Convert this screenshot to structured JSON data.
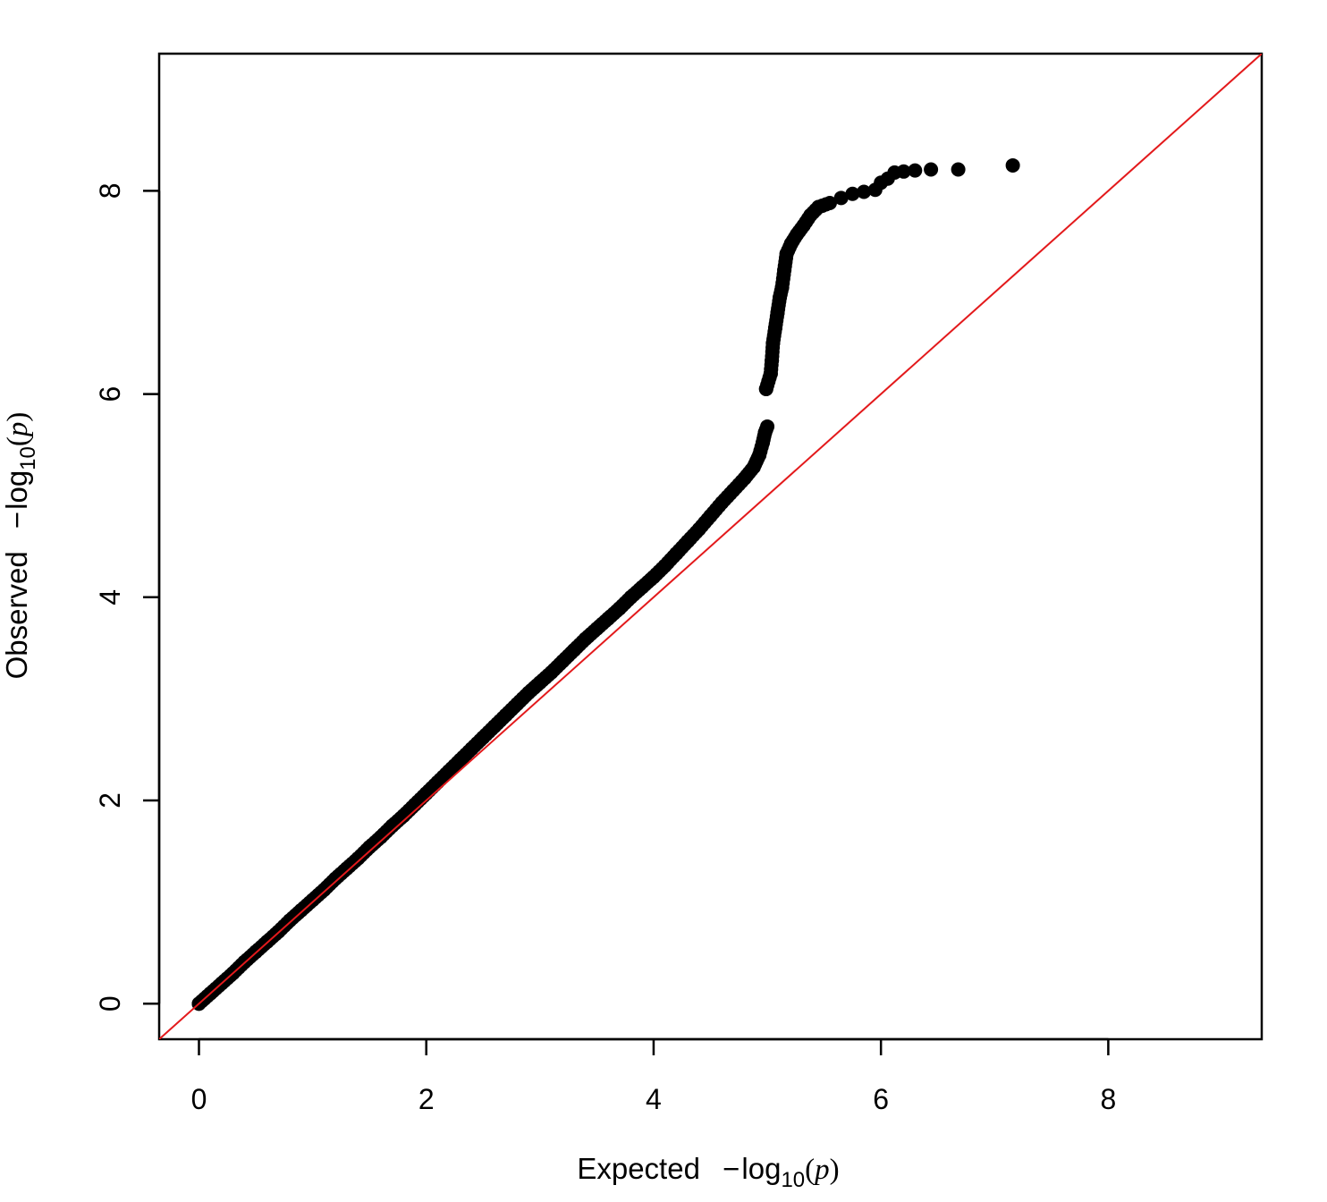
{
  "chart_data": {
    "type": "scatter",
    "xlabel": {
      "prefix": "Expected",
      "minus": "−",
      "log": "log",
      "base": "10",
      "open": "(",
      "var": "p",
      "close": ")"
    },
    "ylabel": {
      "prefix": "Observed",
      "minus": "−",
      "log": "log",
      "base": "10",
      "open": "(",
      "var": "p",
      "close": ")"
    },
    "xlim": [
      -0.35,
      9.35
    ],
    "ylim": [
      -0.35,
      9.35
    ],
    "x_ticks": [
      "0",
      "2",
      "4",
      "6",
      "8"
    ],
    "y_ticks": [
      "0",
      "2",
      "4",
      "6",
      "8"
    ],
    "reference_line": {
      "slope": 1,
      "intercept": 0,
      "color": "#e31a1c"
    },
    "point_color": "#000000",
    "grid": false,
    "series": [
      {
        "points": [
          [
            0.0,
            0.0
          ],
          [
            0.1,
            0.1
          ],
          [
            0.2,
            0.2
          ],
          [
            0.3,
            0.3
          ],
          [
            0.4,
            0.41
          ],
          [
            0.5,
            0.51
          ],
          [
            0.6,
            0.61
          ],
          [
            0.7,
            0.71
          ],
          [
            0.8,
            0.82
          ],
          [
            0.9,
            0.92
          ],
          [
            1.0,
            1.02
          ],
          [
            1.1,
            1.12
          ],
          [
            1.2,
            1.23
          ],
          [
            1.3,
            1.33
          ],
          [
            1.4,
            1.43
          ],
          [
            1.5,
            1.54
          ],
          [
            1.6,
            1.64
          ],
          [
            1.7,
            1.75
          ],
          [
            1.8,
            1.85
          ],
          [
            1.9,
            1.96
          ],
          [
            2.0,
            2.07
          ],
          [
            2.1,
            2.18
          ],
          [
            2.2,
            2.29
          ],
          [
            2.3,
            2.4
          ],
          [
            2.4,
            2.51
          ],
          [
            2.5,
            2.62
          ],
          [
            2.6,
            2.73
          ],
          [
            2.7,
            2.84
          ],
          [
            2.8,
            2.95
          ],
          [
            2.9,
            3.06
          ],
          [
            3.0,
            3.16
          ],
          [
            3.1,
            3.26
          ],
          [
            3.2,
            3.37
          ],
          [
            3.3,
            3.48
          ],
          [
            3.4,
            3.59
          ],
          [
            3.5,
            3.69
          ],
          [
            3.6,
            3.79
          ],
          [
            3.7,
            3.89
          ],
          [
            3.8,
            4.0
          ],
          [
            3.9,
            4.1
          ],
          [
            4.0,
            4.2
          ],
          [
            4.1,
            4.31
          ],
          [
            4.2,
            4.43
          ],
          [
            4.3,
            4.55
          ],
          [
            4.4,
            4.67
          ],
          [
            4.5,
            4.8
          ],
          [
            4.6,
            4.93
          ],
          [
            4.7,
            5.05
          ],
          [
            4.8,
            5.17
          ],
          [
            4.88,
            5.28
          ],
          [
            4.93,
            5.4
          ],
          [
            4.96,
            5.52
          ],
          [
            4.98,
            5.62
          ],
          [
            5.0,
            5.68
          ],
          [
            4.99,
            6.05
          ],
          [
            5.03,
            6.2
          ],
          [
            5.04,
            6.33
          ],
          [
            5.05,
            6.5
          ],
          [
            5.07,
            6.65
          ],
          [
            5.09,
            6.8
          ],
          [
            5.11,
            6.95
          ],
          [
            5.13,
            7.05
          ],
          [
            5.15,
            7.22
          ],
          [
            5.17,
            7.38
          ],
          [
            5.21,
            7.48
          ],
          [
            5.26,
            7.57
          ],
          [
            5.32,
            7.66
          ],
          [
            5.38,
            7.76
          ],
          [
            5.45,
            7.84
          ],
          [
            5.55,
            7.88
          ],
          [
            5.65,
            7.93
          ],
          [
            5.75,
            7.97
          ],
          [
            5.85,
            7.99
          ],
          [
            5.95,
            8.01
          ],
          [
            6.0,
            8.08
          ],
          [
            6.06,
            8.12
          ],
          [
            6.12,
            8.18
          ],
          [
            6.2,
            8.19
          ],
          [
            6.3,
            8.2
          ],
          [
            6.44,
            8.21
          ],
          [
            6.68,
            8.21
          ],
          [
            7.16,
            8.25
          ]
        ]
      }
    ]
  }
}
